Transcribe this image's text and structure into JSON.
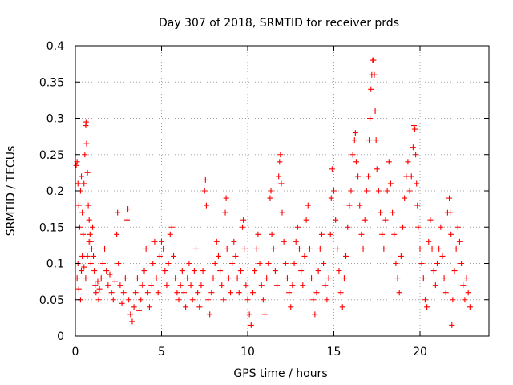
{
  "chart_data": {
    "type": "scatter",
    "title": "Day 307 of 2018, SRMTID for receiver prds",
    "xlabel": "GPS time / hours",
    "ylabel": "SRMTID / TECUs",
    "xlim": [
      0,
      24
    ],
    "ylim": [
      0,
      0.4
    ],
    "xticks": [
      0,
      5,
      10,
      15,
      20
    ],
    "xtick_labels": [
      "0",
      "5",
      "10",
      "15",
      "20"
    ],
    "yticks": [
      0,
      0.05,
      0.1,
      0.15,
      0.2,
      0.25,
      0.3,
      0.35,
      0.4
    ],
    "ytick_labels": [
      "0",
      "0.05",
      "0.1",
      "0.15",
      "0.2",
      "0.25",
      "0.3",
      "0.35",
      "0.4"
    ],
    "grid": true,
    "marker": "+",
    "color": "#ff0000",
    "series": [
      {
        "name": "prds",
        "points": [
          [
            0.05,
            0.235
          ],
          [
            0.1,
            0.24
          ],
          [
            0.15,
            0.21
          ],
          [
            0.2,
            0.18
          ],
          [
            0.25,
            0.15
          ],
          [
            0.3,
            0.2
          ],
          [
            0.35,
            0.22
          ],
          [
            0.4,
            0.17
          ],
          [
            0.45,
            0.14
          ],
          [
            0.5,
            0.21
          ],
          [
            0.55,
            0.25
          ],
          [
            0.6,
            0.29
          ],
          [
            0.62,
            0.295
          ],
          [
            0.65,
            0.265
          ],
          [
            0.7,
            0.225
          ],
          [
            0.75,
            0.18
          ],
          [
            0.8,
            0.16
          ],
          [
            0.85,
            0.14
          ],
          [
            0.9,
            0.13
          ],
          [
            0.95,
            0.12
          ],
          [
            0.1,
            0.08
          ],
          [
            0.15,
            0.1
          ],
          [
            0.2,
            0.065
          ],
          [
            0.3,
            0.05
          ],
          [
            0.35,
            0.09
          ],
          [
            0.4,
            0.11
          ],
          [
            0.5,
            0.095
          ],
          [
            0.6,
            0.08
          ],
          [
            0.7,
            0.11
          ],
          [
            0.8,
            0.13
          ],
          [
            0.9,
            0.1
          ],
          [
            1.0,
            0.15
          ],
          [
            1.05,
            0.11
          ],
          [
            1.1,
            0.09
          ],
          [
            1.15,
            0.07
          ],
          [
            1.2,
            0.06
          ],
          [
            1.3,
            0.075
          ],
          [
            1.35,
            0.05
          ],
          [
            1.4,
            0.065
          ],
          [
            1.5,
            0.08
          ],
          [
            1.6,
            0.1
          ],
          [
            1.7,
            0.12
          ],
          [
            1.8,
            0.09
          ],
          [
            1.9,
            0.07
          ],
          [
            2.0,
            0.085
          ],
          [
            2.1,
            0.06
          ],
          [
            2.2,
            0.05
          ],
          [
            2.3,
            0.075
          ],
          [
            2.4,
            0.14
          ],
          [
            2.45,
            0.17
          ],
          [
            2.5,
            0.1
          ],
          [
            2.6,
            0.07
          ],
          [
            2.7,
            0.045
          ],
          [
            2.8,
            0.06
          ],
          [
            2.9,
            0.08
          ],
          [
            3.0,
            0.16
          ],
          [
            3.05,
            0.175
          ],
          [
            3.1,
            0.05
          ],
          [
            3.2,
            0.03
          ],
          [
            3.3,
            0.02
          ],
          [
            3.4,
            0.04
          ],
          [
            3.5,
            0.06
          ],
          [
            3.6,
            0.08
          ],
          [
            3.7,
            0.035
          ],
          [
            3.8,
            0.05
          ],
          [
            3.9,
            0.07
          ],
          [
            4.0,
            0.09
          ],
          [
            4.1,
            0.12
          ],
          [
            4.2,
            0.06
          ],
          [
            4.3,
            0.04
          ],
          [
            4.4,
            0.07
          ],
          [
            4.5,
            0.1
          ],
          [
            4.6,
            0.13
          ],
          [
            4.7,
            0.08
          ],
          [
            4.8,
            0.06
          ],
          [
            4.9,
            0.11
          ],
          [
            5.0,
            0.13
          ],
          [
            5.1,
            0.12
          ],
          [
            5.2,
            0.09
          ],
          [
            5.3,
            0.07
          ],
          [
            5.4,
            0.1
          ],
          [
            5.5,
            0.14
          ],
          [
            5.6,
            0.15
          ],
          [
            5.7,
            0.11
          ],
          [
            5.8,
            0.08
          ],
          [
            5.9,
            0.06
          ],
          [
            6.0,
            0.05
          ],
          [
            6.1,
            0.07
          ],
          [
            6.2,
            0.09
          ],
          [
            6.3,
            0.06
          ],
          [
            6.4,
            0.04
          ],
          [
            6.5,
            0.08
          ],
          [
            6.6,
            0.1
          ],
          [
            6.7,
            0.07
          ],
          [
            6.8,
            0.05
          ],
          [
            6.9,
            0.09
          ],
          [
            7.0,
            0.12
          ],
          [
            7.1,
            0.06
          ],
          [
            7.2,
            0.04
          ],
          [
            7.3,
            0.07
          ],
          [
            7.4,
            0.09
          ],
          [
            7.5,
            0.2
          ],
          [
            7.55,
            0.215
          ],
          [
            7.6,
            0.18
          ],
          [
            7.7,
            0.05
          ],
          [
            7.8,
            0.03
          ],
          [
            7.9,
            0.06
          ],
          [
            8.0,
            0.08
          ],
          [
            8.1,
            0.1
          ],
          [
            8.2,
            0.13
          ],
          [
            8.3,
            0.11
          ],
          [
            8.4,
            0.09
          ],
          [
            8.5,
            0.07
          ],
          [
            8.6,
            0.05
          ],
          [
            8.7,
            0.17
          ],
          [
            8.75,
            0.19
          ],
          [
            8.8,
            0.12
          ],
          [
            8.9,
            0.08
          ],
          [
            9.0,
            0.06
          ],
          [
            9.1,
            0.1
          ],
          [
            9.2,
            0.13
          ],
          [
            9.3,
            0.11
          ],
          [
            9.4,
            0.08
          ],
          [
            9.5,
            0.06
          ],
          [
            9.6,
            0.09
          ],
          [
            9.7,
            0.15
          ],
          [
            9.75,
            0.16
          ],
          [
            9.8,
            0.12
          ],
          [
            9.9,
            0.07
          ],
          [
            10.0,
            0.05
          ],
          [
            10.1,
            0.03
          ],
          [
            10.2,
            0.015
          ],
          [
            10.3,
            0.06
          ],
          [
            10.4,
            0.09
          ],
          [
            10.5,
            0.12
          ],
          [
            10.6,
            0.14
          ],
          [
            10.7,
            0.1
          ],
          [
            10.8,
            0.07
          ],
          [
            10.9,
            0.05
          ],
          [
            11.0,
            0.03
          ],
          [
            11.1,
            0.08
          ],
          [
            11.2,
            0.1
          ],
          [
            11.3,
            0.19
          ],
          [
            11.35,
            0.2
          ],
          [
            11.4,
            0.14
          ],
          [
            11.5,
            0.12
          ],
          [
            11.6,
            0.09
          ],
          [
            11.7,
            0.07
          ],
          [
            11.8,
            0.22
          ],
          [
            11.85,
            0.24
          ],
          [
            11.9,
            0.25
          ],
          [
            11.95,
            0.21
          ],
          [
            12.0,
            0.17
          ],
          [
            12.1,
            0.13
          ],
          [
            12.2,
            0.1
          ],
          [
            12.3,
            0.08
          ],
          [
            12.4,
            0.06
          ],
          [
            12.5,
            0.04
          ],
          [
            12.6,
            0.07
          ],
          [
            12.7,
            0.1
          ],
          [
            12.8,
            0.13
          ],
          [
            12.9,
            0.15
          ],
          [
            13.0,
            0.12
          ],
          [
            13.1,
            0.09
          ],
          [
            13.2,
            0.07
          ],
          [
            13.3,
            0.11
          ],
          [
            13.4,
            0.16
          ],
          [
            13.5,
            0.18
          ],
          [
            13.6,
            0.12
          ],
          [
            13.7,
            0.08
          ],
          [
            13.8,
            0.05
          ],
          [
            13.9,
            0.03
          ],
          [
            14.0,
            0.06
          ],
          [
            14.1,
            0.09
          ],
          [
            14.2,
            0.12
          ],
          [
            14.3,
            0.14
          ],
          [
            14.4,
            0.1
          ],
          [
            14.5,
            0.07
          ],
          [
            14.6,
            0.05
          ],
          [
            14.7,
            0.08
          ],
          [
            14.8,
            0.14
          ],
          [
            14.85,
            0.19
          ],
          [
            14.9,
            0.23
          ],
          [
            15.0,
            0.2
          ],
          [
            15.1,
            0.16
          ],
          [
            15.2,
            0.12
          ],
          [
            15.3,
            0.09
          ],
          [
            15.4,
            0.06
          ],
          [
            15.5,
            0.04
          ],
          [
            15.6,
            0.08
          ],
          [
            15.7,
            0.11
          ],
          [
            15.8,
            0.15
          ],
          [
            15.9,
            0.18
          ],
          [
            16.0,
            0.2
          ],
          [
            16.1,
            0.25
          ],
          [
            16.2,
            0.27
          ],
          [
            16.25,
            0.28
          ],
          [
            16.3,
            0.24
          ],
          [
            16.4,
            0.22
          ],
          [
            16.5,
            0.18
          ],
          [
            16.6,
            0.14
          ],
          [
            16.7,
            0.12
          ],
          [
            16.8,
            0.16
          ],
          [
            16.9,
            0.2
          ],
          [
            17.0,
            0.22
          ],
          [
            17.05,
            0.27
          ],
          [
            17.1,
            0.3
          ],
          [
            17.15,
            0.34
          ],
          [
            17.2,
            0.36
          ],
          [
            17.25,
            0.38
          ],
          [
            17.3,
            0.38
          ],
          [
            17.35,
            0.36
          ],
          [
            17.4,
            0.31
          ],
          [
            17.45,
            0.27
          ],
          [
            17.5,
            0.23
          ],
          [
            17.6,
            0.2
          ],
          [
            17.7,
            0.17
          ],
          [
            17.8,
            0.14
          ],
          [
            17.9,
            0.12
          ],
          [
            18.0,
            0.16
          ],
          [
            18.1,
            0.2
          ],
          [
            18.2,
            0.24
          ],
          [
            18.3,
            0.21
          ],
          [
            18.4,
            0.17
          ],
          [
            18.5,
            0.14
          ],
          [
            18.6,
            0.1
          ],
          [
            18.7,
            0.08
          ],
          [
            18.8,
            0.06
          ],
          [
            18.9,
            0.11
          ],
          [
            19.0,
            0.15
          ],
          [
            19.1,
            0.19
          ],
          [
            19.2,
            0.22
          ],
          [
            19.3,
            0.24
          ],
          [
            19.4,
            0.2
          ],
          [
            19.5,
            0.22
          ],
          [
            19.6,
            0.26
          ],
          [
            19.65,
            0.29
          ],
          [
            19.7,
            0.285
          ],
          [
            19.75,
            0.25
          ],
          [
            19.8,
            0.21
          ],
          [
            19.85,
            0.18
          ],
          [
            19.9,
            0.15
          ],
          [
            20.0,
            0.12
          ],
          [
            20.1,
            0.1
          ],
          [
            20.2,
            0.08
          ],
          [
            20.3,
            0.05
          ],
          [
            20.4,
            0.04
          ],
          [
            20.5,
            0.13
          ],
          [
            20.6,
            0.16
          ],
          [
            20.7,
            0.12
          ],
          [
            20.8,
            0.09
          ],
          [
            20.9,
            0.07
          ],
          [
            21.0,
            0.1
          ],
          [
            21.1,
            0.12
          ],
          [
            21.2,
            0.15
          ],
          [
            21.3,
            0.11
          ],
          [
            21.4,
            0.08
          ],
          [
            21.5,
            0.06
          ],
          [
            21.6,
            0.17
          ],
          [
            21.7,
            0.19
          ],
          [
            21.75,
            0.17
          ],
          [
            21.8,
            0.14
          ],
          [
            21.85,
            0.015
          ],
          [
            21.9,
            0.05
          ],
          [
            22.0,
            0.09
          ],
          [
            22.1,
            0.12
          ],
          [
            22.2,
            0.15
          ],
          [
            22.3,
            0.13
          ],
          [
            22.4,
            0.1
          ],
          [
            22.5,
            0.07
          ],
          [
            22.6,
            0.05
          ],
          [
            22.7,
            0.08
          ],
          [
            22.8,
            0.06
          ],
          [
            22.9,
            0.04
          ]
        ]
      }
    ]
  }
}
